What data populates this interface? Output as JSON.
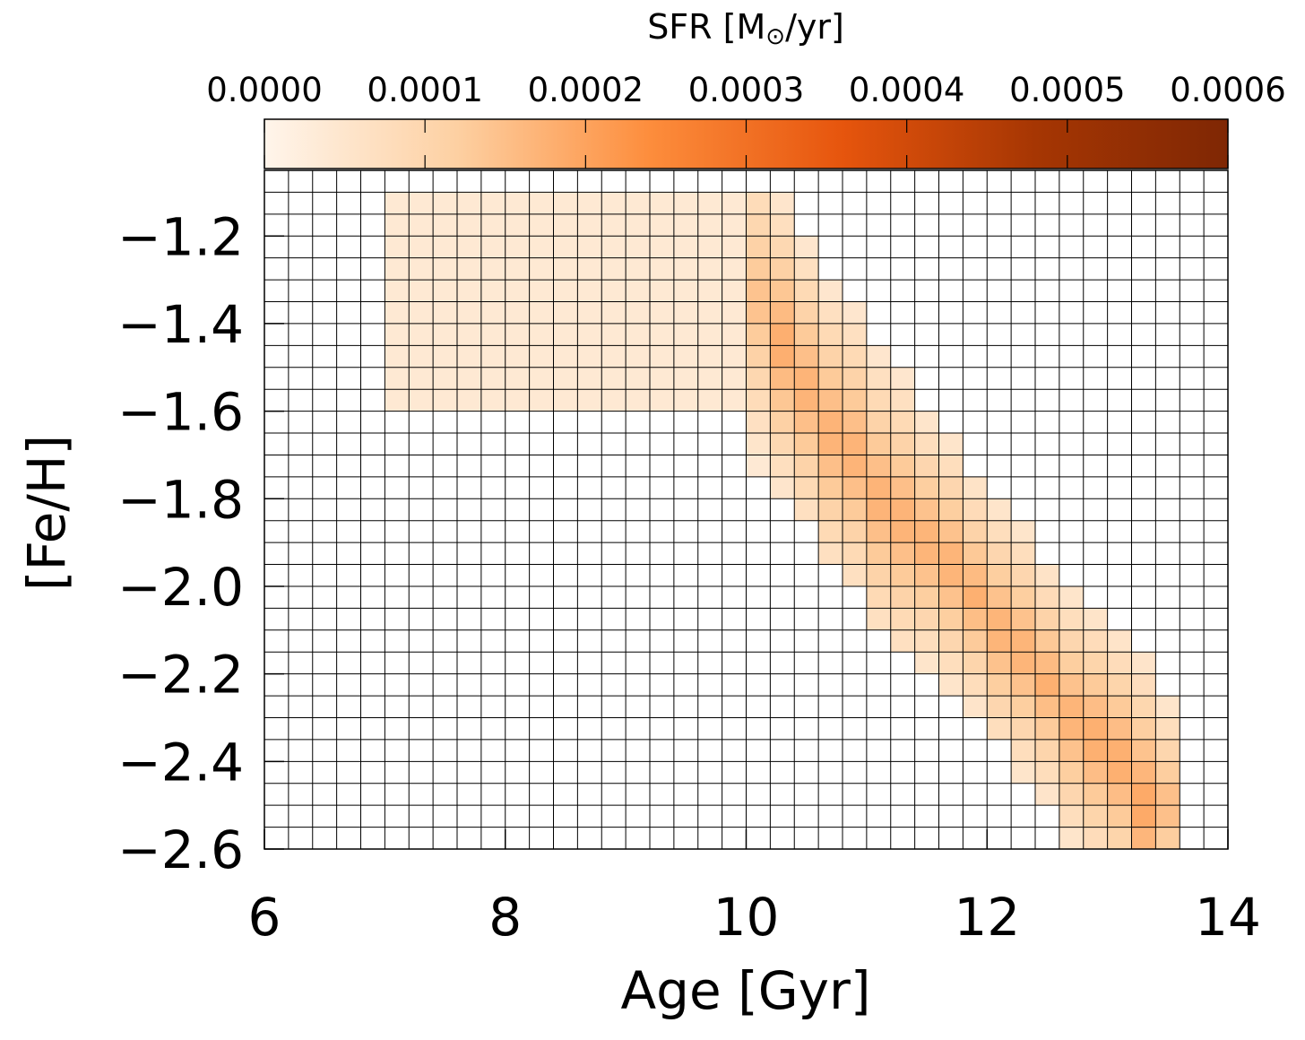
{
  "chart_data": {
    "type": "heatmap",
    "xlabel": "Age [Gyr]",
    "ylabel": "[Fe/H]",
    "xlim": [
      6,
      14
    ],
    "ylim": [
      -2.6,
      -1.05
    ],
    "x_ticks": [
      6,
      8,
      10,
      12,
      14
    ],
    "x_tick_labels": [
      "6",
      "8",
      "10",
      "12",
      "14"
    ],
    "y_ticks": [
      -1.2,
      -1.4,
      -1.6,
      -1.8,
      -2.0,
      -2.2,
      -2.4,
      -2.6
    ],
    "y_tick_labels": [
      "−1.2",
      "−1.4",
      "−1.6",
      "−1.8",
      "−2.0",
      "−2.2",
      "−2.4",
      "−2.6"
    ],
    "grid": true,
    "x_bin_width": 0.2,
    "y_bin_width": 0.05,
    "colorbar": {
      "label_prefix": "SFR [M",
      "label_sub": "⊙",
      "label_suffix": "/yr]",
      "range": [
        0,
        0.0006
      ],
      "ticks": [
        0,
        0.0001,
        0.0002,
        0.0003,
        0.0004,
        0.0005,
        0.0006
      ],
      "tick_labels": [
        "0.0000",
        "0.0001",
        "0.0002",
        "0.0003",
        "0.0004",
        "0.0005",
        "0.0006"
      ],
      "location": "top",
      "colors": [
        "#fff5eb",
        "#fdd0a2",
        "#fd8d3c",
        "#e6550d",
        "#a63603",
        "#7f2704"
      ]
    },
    "blocks": [
      {
        "x": [
          7.0,
          10.0
        ],
        "y": [
          -1.6,
          -1.1
        ],
        "value": 4e-05
      }
    ],
    "bands": [
      {
        "x": [
          10.0,
          10.2
        ],
        "y": [
          -1.75,
          -1.1
        ],
        "center": -1.35,
        "peak": 0.00015
      },
      {
        "x": [
          10.2,
          10.4
        ],
        "y": [
          -1.8,
          -1.1
        ],
        "center": -1.45,
        "peak": 0.00019
      },
      {
        "x": [
          10.4,
          10.6
        ],
        "y": [
          -1.85,
          -1.2
        ],
        "center": -1.55,
        "peak": 0.00018
      },
      {
        "x": [
          10.6,
          10.8
        ],
        "y": [
          -1.95,
          -1.3
        ],
        "center": -1.65,
        "peak": 0.00018
      },
      {
        "x": [
          10.8,
          11.0
        ],
        "y": [
          -2.0,
          -1.35
        ],
        "center": -1.7,
        "peak": 0.00018
      },
      {
        "x": [
          11.0,
          11.2
        ],
        "y": [
          -2.1,
          -1.45
        ],
        "center": -1.8,
        "peak": 0.00018
      },
      {
        "x": [
          11.2,
          11.4
        ],
        "y": [
          -2.15,
          -1.5
        ],
        "center": -1.85,
        "peak": 0.00018
      },
      {
        "x": [
          11.4,
          11.6
        ],
        "y": [
          -2.2,
          -1.6
        ],
        "center": -1.9,
        "peak": 0.00018
      },
      {
        "x": [
          11.6,
          11.8
        ],
        "y": [
          -2.25,
          -1.65
        ],
        "center": -1.95,
        "peak": 0.00018
      },
      {
        "x": [
          11.8,
          12.0
        ],
        "y": [
          -2.3,
          -1.75
        ],
        "center": -2.02,
        "peak": 0.00018
      },
      {
        "x": [
          12.0,
          12.2
        ],
        "y": [
          -2.35,
          -1.8
        ],
        "center": -2.1,
        "peak": 0.00018
      },
      {
        "x": [
          12.2,
          12.4
        ],
        "y": [
          -2.45,
          -1.85
        ],
        "center": -2.15,
        "peak": 0.00018
      },
      {
        "x": [
          12.4,
          12.6
        ],
        "y": [
          -2.5,
          -1.95
        ],
        "center": -2.22,
        "peak": 0.00018
      },
      {
        "x": [
          12.6,
          12.8
        ],
        "y": [
          -2.6,
          -2.0
        ],
        "center": -2.3,
        "peak": 0.00018
      },
      {
        "x": [
          12.8,
          13.0
        ],
        "y": [
          -2.6,
          -2.05
        ],
        "center": -2.35,
        "peak": 0.00019
      },
      {
        "x": [
          13.0,
          13.2
        ],
        "y": [
          -2.6,
          -2.1
        ],
        "center": -2.4,
        "peak": 0.00019
      },
      {
        "x": [
          13.2,
          13.4
        ],
        "y": [
          -2.6,
          -2.15
        ],
        "center": -2.5,
        "peak": 0.0002
      },
      {
        "x": [
          13.4,
          13.6
        ],
        "y": [
          -2.6,
          -2.25
        ],
        "center": -2.5,
        "peak": 0.00016
      }
    ]
  }
}
